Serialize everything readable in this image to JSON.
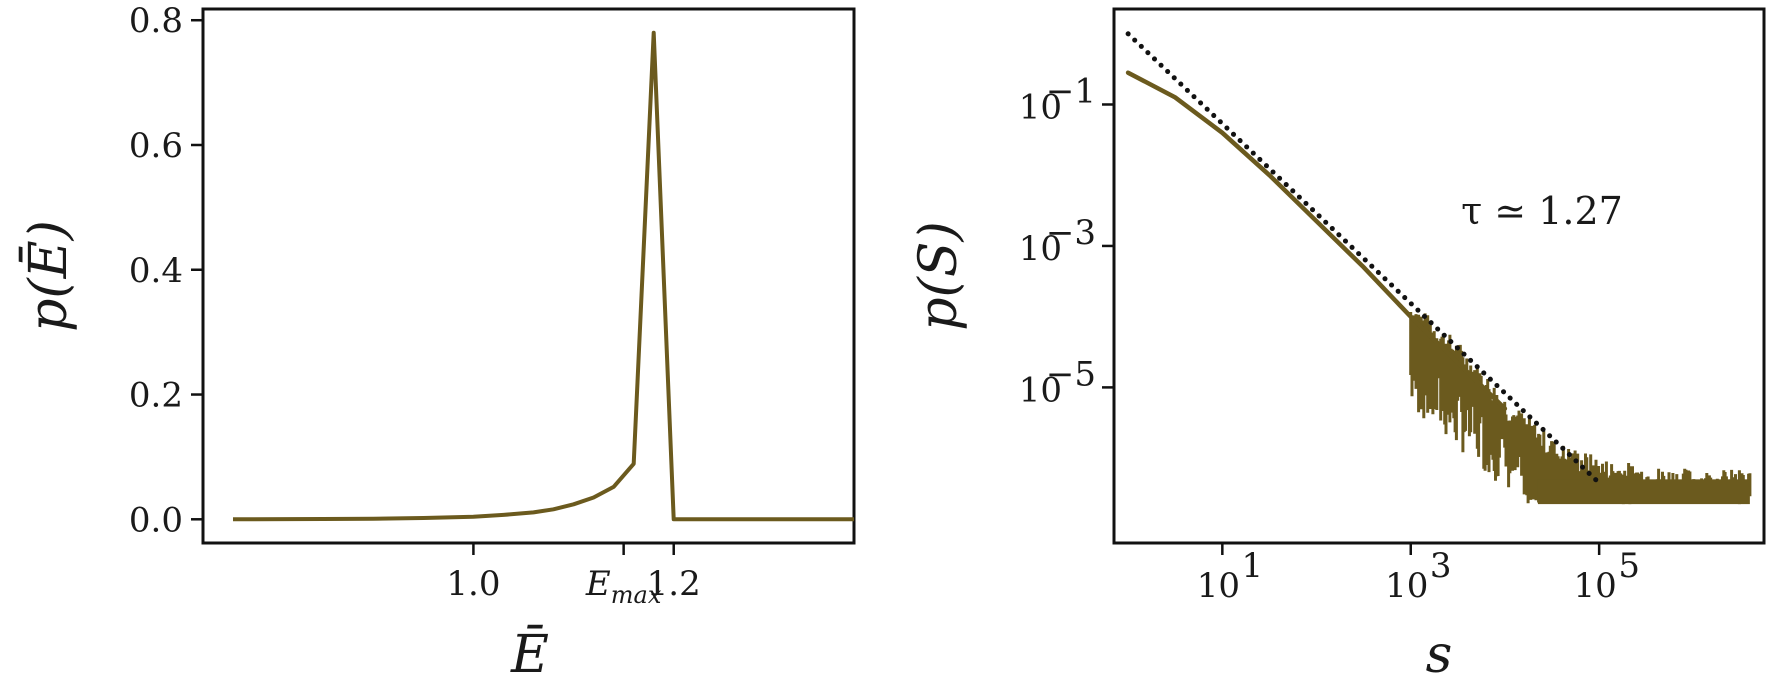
{
  "chart_data": [
    {
      "type": "line",
      "xlabel": "Ē",
      "ylabel": "p(Ē)",
      "xlim": [
        0.73,
        1.38
      ],
      "ylim": [
        -0.038,
        0.818
      ],
      "xticks": [
        {
          "value": 1.0,
          "label": "1.0"
        },
        {
          "value": 1.15,
          "label": "E",
          "sub": "max"
        },
        {
          "value": 1.2,
          "label": "1.2"
        }
      ],
      "yticks": [
        {
          "value": 0.0,
          "label": "0.0"
        },
        {
          "value": 0.2,
          "label": "0.2"
        },
        {
          "value": 0.4,
          "label": "0.4"
        },
        {
          "value": 0.6,
          "label": "0.6"
        },
        {
          "value": 0.8,
          "label": "0.8"
        }
      ],
      "series": [
        {
          "color": "#6b5a1e",
          "x": [
            0.76,
            0.85,
            0.9,
            0.95,
            1.0,
            1.03,
            1.06,
            1.08,
            1.1,
            1.12,
            1.14,
            1.16,
            1.18,
            1.2,
            1.38
          ],
          "y": [
            0.0,
            0.0005,
            0.001,
            0.002,
            0.004,
            0.007,
            0.011,
            0.016,
            0.024,
            0.035,
            0.052,
            0.089,
            0.78,
            0.0,
            0.0
          ]
        }
      ]
    },
    {
      "type": "line",
      "xlabel": "s",
      "ylabel": "p(S)",
      "xscale": "log",
      "yscale": "log",
      "xlim_exp": [
        -0.15,
        6.75
      ],
      "ylim_exp": [
        -7.2,
        0.35
      ],
      "xticks": [
        {
          "exp": 1,
          "base": "10",
          "power": "1"
        },
        {
          "exp": 3,
          "base": "10",
          "power": "3"
        },
        {
          "exp": 5,
          "base": "10",
          "power": "5"
        }
      ],
      "yticks": [
        {
          "exp": -1,
          "base": "10",
          "power": "−1"
        },
        {
          "exp": -3,
          "base": "10",
          "power": "−3"
        },
        {
          "exp": -5,
          "base": "10",
          "power": "−5"
        }
      ],
      "annotation": "τ ≃ 1.27",
      "series": [
        {
          "color": "#6b5a1e",
          "style": "solid",
          "x_exp": [
            0.0,
            0.5,
            1.0,
            1.5,
            2.0,
            2.5,
            3.0,
            3.5,
            4.0
          ],
          "y_exp": [
            -0.55,
            -0.9,
            -1.4,
            -2.0,
            -2.65,
            -3.3,
            -4.0,
            -4.65,
            -5.3
          ]
        },
        {
          "color": "#6b5a1e",
          "style": "noise-band",
          "x_exp_range": [
            3.0,
            6.6
          ],
          "floor_exp": -6.65,
          "top_exp": [
            -4.0,
            -4.6,
            -5.4,
            -6.0,
            -6.25,
            -6.35,
            -6.4,
            -6.4
          ]
        },
        {
          "color": "#111111",
          "style": "dotted",
          "x_exp": [
            0.0,
            5.0
          ],
          "y_exp": [
            0.0,
            -6.35
          ]
        }
      ]
    }
  ]
}
